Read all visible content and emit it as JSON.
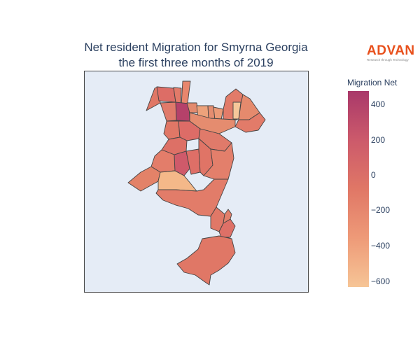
{
  "title_line1": "Net resident Migration for Smyrna Georgia",
  "title_line2": "the first three months of 2019",
  "logo": {
    "word": "ADVAN",
    "tagline": "Research through Technology",
    "color": "#e8501c"
  },
  "colorbar": {
    "title": "Migration Net",
    "ticks": [
      "400",
      "200",
      "0",
      "−200",
      "−400",
      "−600"
    ],
    "range": [
      -650,
      480
    ],
    "colors": [
      "#f6c596",
      "#ee9a78",
      "#e07766",
      "#cc5a6b",
      "#a9386a"
    ]
  },
  "map": {
    "background": "#e5ecf6",
    "border_color": "#444444",
    "region_border_color": "#444444"
  }
}
